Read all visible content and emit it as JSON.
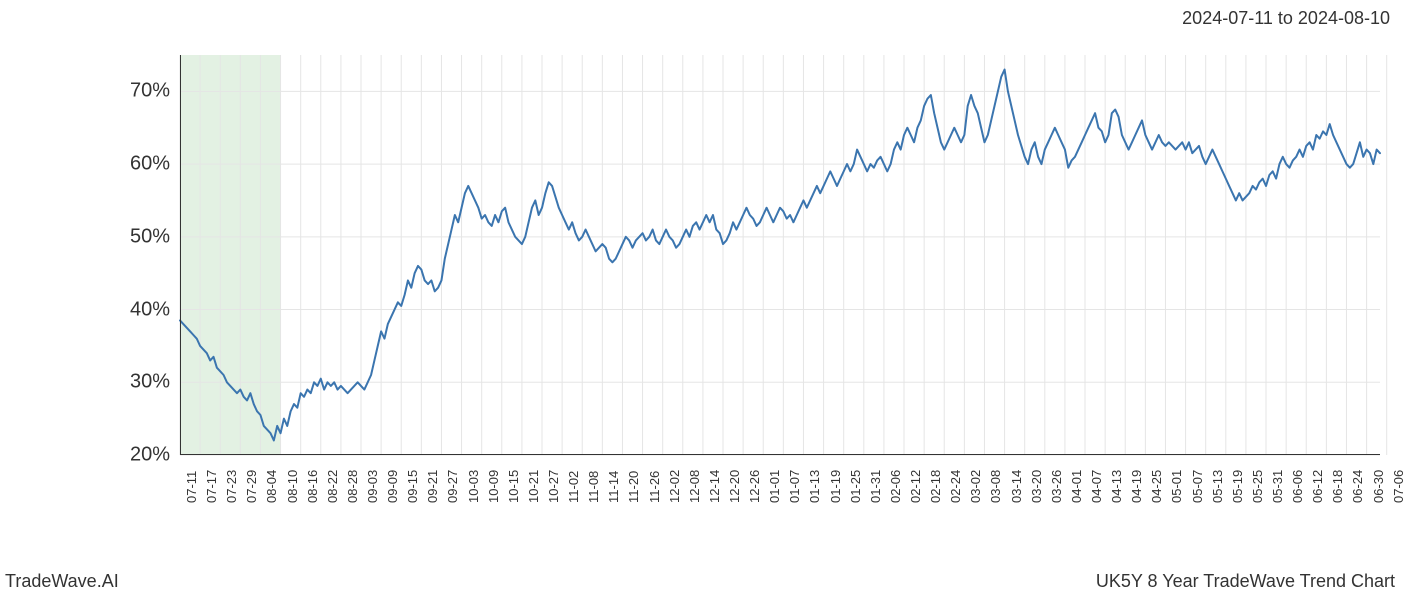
{
  "header": {
    "date_range": "2024-07-11 to 2024-08-10"
  },
  "footer": {
    "left": "TradeWave.AI",
    "right": "UK5Y 8 Year TradeWave Trend Chart"
  },
  "chart": {
    "type": "line",
    "background_color": "#ffffff",
    "grid_color": "#e5e5e5",
    "axis_color": "#333333",
    "line_color": "#3b75af",
    "line_width": 2,
    "highlight_band": {
      "start_index": 0,
      "end_index": 30,
      "color": "rgba(144,198,144,0.25)"
    },
    "y_axis": {
      "min": 20,
      "max": 75,
      "ticks": [
        20,
        30,
        40,
        50,
        60,
        70
      ],
      "tick_labels": [
        "20%",
        "30%",
        "40%",
        "50%",
        "60%",
        "70%"
      ],
      "label_fontsize": 20
    },
    "x_axis": {
      "tick_labels": [
        "07-11",
        "07-17",
        "07-23",
        "07-29",
        "08-04",
        "08-10",
        "08-16",
        "08-22",
        "08-28",
        "09-03",
        "09-09",
        "09-15",
        "09-21",
        "09-27",
        "10-03",
        "10-09",
        "10-15",
        "10-21",
        "10-27",
        "11-02",
        "11-08",
        "11-14",
        "11-20",
        "11-26",
        "12-02",
        "12-08",
        "12-14",
        "12-20",
        "12-26",
        "01-01",
        "01-07",
        "01-13",
        "01-19",
        "01-25",
        "01-31",
        "02-06",
        "02-12",
        "02-18",
        "02-24",
        "03-02",
        "03-08",
        "03-14",
        "03-20",
        "03-26",
        "04-01",
        "04-07",
        "04-13",
        "04-19",
        "04-25",
        "05-01",
        "05-07",
        "05-13",
        "05-19",
        "05-25",
        "05-31",
        "06-06",
        "06-12",
        "06-18",
        "06-24",
        "06-30",
        "07-06"
      ],
      "tick_step_points": 6,
      "label_fontsize": 13,
      "label_rotation": -90
    },
    "series": {
      "name": "UK5Y trend",
      "values": [
        38.5,
        38,
        37.5,
        37,
        36.5,
        36,
        35,
        34.5,
        34,
        33,
        33.5,
        32,
        31.5,
        31,
        30,
        29.5,
        29,
        28.5,
        29,
        28,
        27.5,
        28.5,
        27,
        26,
        25.5,
        24,
        23.5,
        23,
        22,
        24,
        23,
        25,
        24,
        26,
        27,
        26.5,
        28.5,
        28,
        29,
        28.5,
        30,
        29.5,
        30.5,
        29,
        30,
        29.5,
        30,
        29,
        29.5,
        29,
        28.5,
        29,
        29.5,
        30,
        29.5,
        29,
        30,
        31,
        33,
        35,
        37,
        36,
        38,
        39,
        40,
        41,
        40.5,
        42,
        44,
        43,
        45,
        46,
        45.5,
        44,
        43.5,
        44,
        42.5,
        43,
        44,
        47,
        49,
        51,
        53,
        52,
        54,
        56,
        57,
        56,
        55,
        54,
        52.5,
        53,
        52,
        51.5,
        53,
        52,
        53.5,
        54,
        52,
        51,
        50,
        49.5,
        49,
        50,
        52,
        54,
        55,
        53,
        54,
        56,
        57.5,
        57,
        55.5,
        54,
        53,
        52,
        51,
        52,
        50.5,
        49.5,
        50,
        51,
        50,
        49,
        48,
        48.5,
        49,
        48.5,
        47,
        46.5,
        47,
        48,
        49,
        50,
        49.5,
        48.5,
        49.5,
        50,
        50.5,
        49.5,
        50,
        51,
        49.5,
        49,
        50,
        51,
        50,
        49.5,
        48.5,
        49,
        50,
        51,
        50,
        51.5,
        52,
        51,
        52,
        53,
        52,
        53,
        51,
        50.5,
        49,
        49.5,
        50.5,
        52,
        51,
        52,
        53,
        54,
        53,
        52.5,
        51.5,
        52,
        53,
        54,
        53,
        52,
        53,
        54,
        53.5,
        52.5,
        53,
        52,
        53,
        54,
        55,
        54,
        55,
        56,
        57,
        56,
        57,
        58,
        59,
        58,
        57,
        58,
        59,
        60,
        59,
        60,
        62,
        61,
        60,
        59,
        60,
        59.5,
        60.5,
        61,
        60,
        59,
        60,
        62,
        63,
        62,
        64,
        65,
        64,
        63,
        65,
        66,
        68,
        69,
        69.5,
        67,
        65,
        63,
        62,
        63,
        64,
        65,
        64,
        63,
        64,
        68,
        69.5,
        68,
        67,
        65,
        63,
        64,
        66,
        68,
        70,
        72,
        73,
        70,
        68,
        66,
        64,
        62.5,
        61,
        60,
        62,
        63,
        61,
        60,
        62,
        63,
        64,
        65,
        64,
        63,
        62,
        59.5,
        60.5,
        61,
        62,
        63,
        64,
        65,
        66,
        67,
        65,
        64.5,
        63,
        64,
        67,
        67.5,
        66.5,
        64,
        63,
        62,
        63,
        64,
        65,
        66,
        64,
        63,
        62,
        63,
        64,
        63,
        62.5,
        63,
        62.5,
        62,
        62.5,
        63,
        62,
        63,
        61.5,
        62,
        62.5,
        61,
        60,
        61,
        62,
        61,
        60,
        59,
        58,
        57,
        56,
        55,
        56,
        55,
        55.5,
        56,
        57,
        56.5,
        57.5,
        58,
        57,
        58.5,
        59,
        58,
        60,
        61,
        60,
        59.5,
        60.5,
        61,
        62,
        61,
        62.5,
        63,
        62,
        64,
        63.5,
        64.5,
        64,
        65.5,
        64,
        63,
        62,
        61,
        60,
        59.5,
        60,
        61.5,
        63,
        61,
        62,
        61.5,
        60,
        62,
        61.5
      ]
    }
  }
}
